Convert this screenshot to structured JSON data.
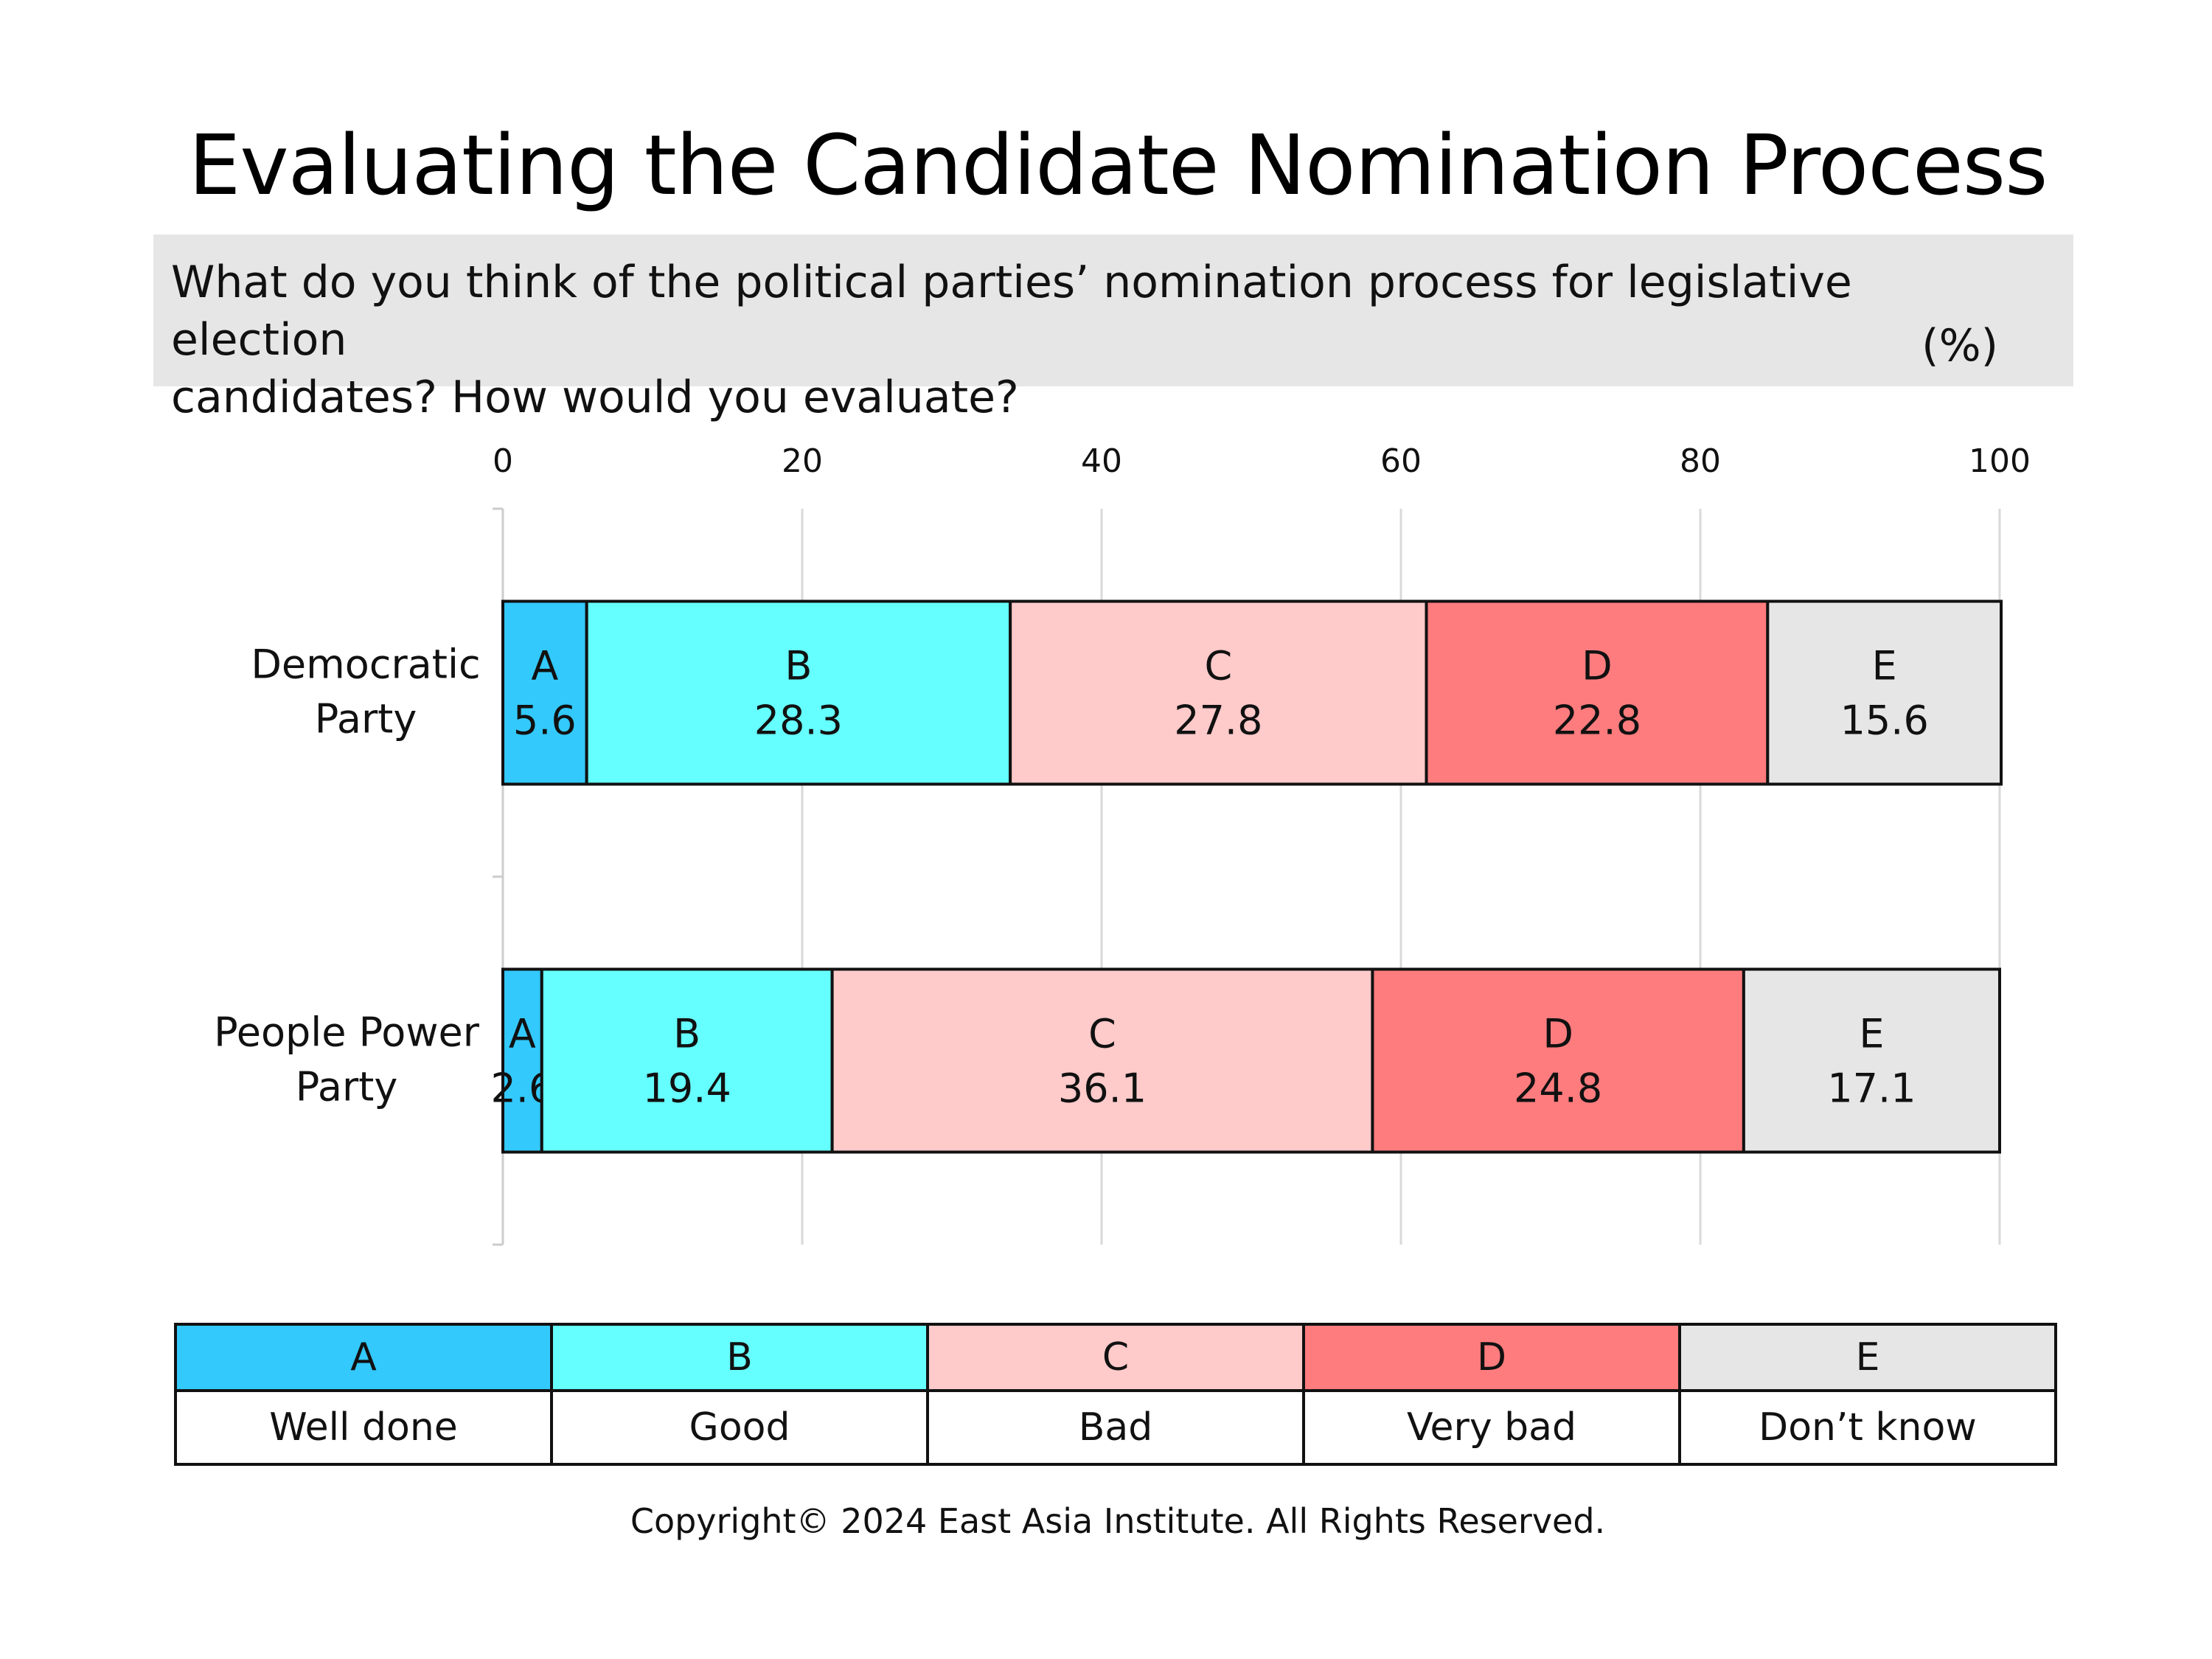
{
  "header": {
    "title": "Evaluating the Candidate Nomination Process",
    "question_line1": "What do you think of the political parties’ nomination process for legislative election",
    "question_line2": "candidates? How would you evaluate?",
    "unit": "(%)"
  },
  "chart_data": {
    "type": "bar",
    "orientation": "horizontal",
    "stacked": true,
    "categories": [
      [
        "Democratic",
        "Party"
      ],
      [
        "People Power",
        "Party"
      ]
    ],
    "xlim": [
      0,
      100
    ],
    "xticks": [
      0,
      20,
      40,
      60,
      80,
      100
    ],
    "grid": true,
    "series": [
      {
        "name": "A",
        "color": "#33c9fc",
        "values": [
          5.6,
          2.6
        ]
      },
      {
        "name": "B",
        "color": "#66ffff",
        "values": [
          28.3,
          19.4
        ]
      },
      {
        "name": "C",
        "color": "#ffcaca",
        "values": [
          27.8,
          36.1
        ]
      },
      {
        "name": "D",
        "color": "#ff7c7e",
        "values": [
          22.8,
          24.8
        ]
      },
      {
        "name": "E",
        "color": "#e6e6e6",
        "values": [
          15.6,
          17.1
        ]
      }
    ]
  },
  "legend": {
    "items": [
      {
        "code": "A",
        "label": "Well done",
        "color": "#33c9fc"
      },
      {
        "code": "B",
        "label": "Good",
        "color": "#66ffff"
      },
      {
        "code": "C",
        "label": "Bad",
        "color": "#ffcaca"
      },
      {
        "code": "D",
        "label": "Very bad",
        "color": "#ff7c7e"
      },
      {
        "code": "E",
        "label": "Don’t know",
        "color": "#e6e6e6"
      }
    ]
  },
  "footer": {
    "copyright": "Copyright© 2024 East Asia Institute. All Rights Reserved."
  }
}
